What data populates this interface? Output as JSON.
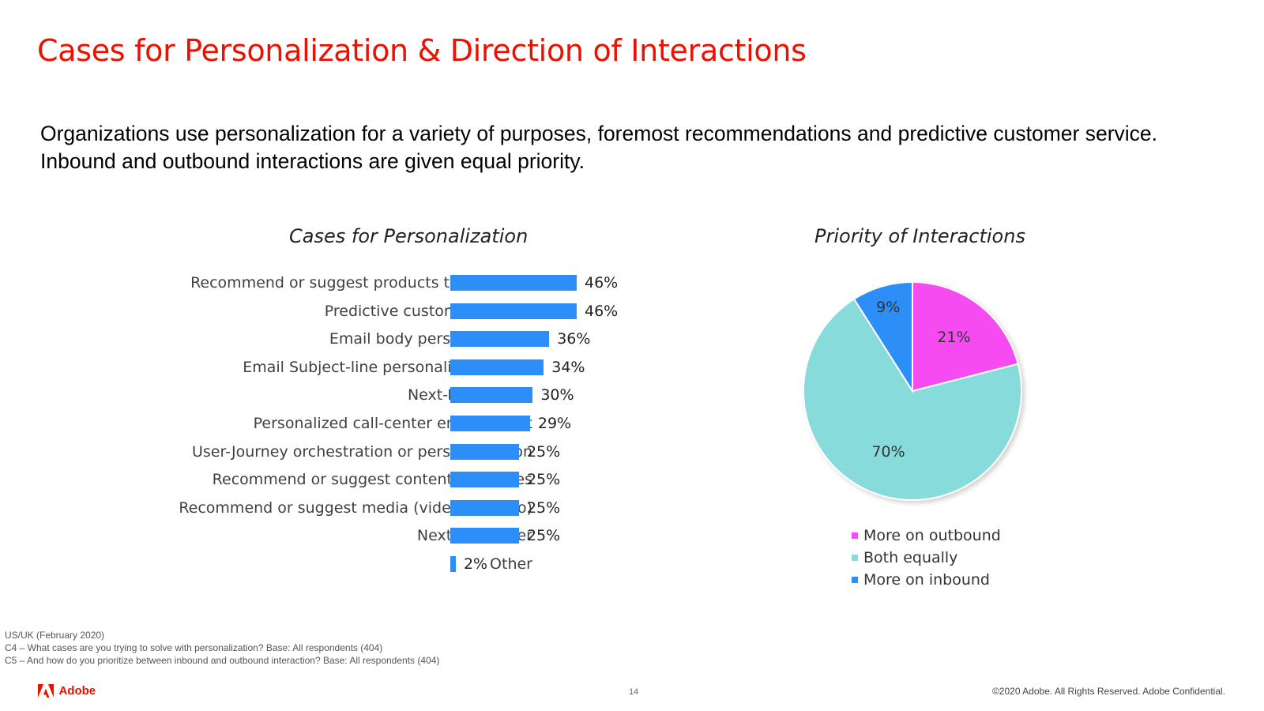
{
  "page": {
    "title": "Cases for Personalization & Direction of Interactions",
    "subtitle_lines": [
      "Organizations use personalization for a variety of purposes, foremost recommendations and predictive customer service.",
      "Inbound and outbound interactions are given equal priority."
    ]
  },
  "chart_data": [
    {
      "type": "bar",
      "orientation": "horizontal",
      "title": "Cases for Personalization",
      "categories": [
        "Recommend or suggest products to purchase",
        "Predictive customer service",
        "Email body personalization",
        "Email Subject-line personalization or…",
        "Next-Best Action",
        "Personalized call-center engagement",
        "User-Journey orchestration or personalization",
        "Recommend or suggest content or articles",
        "Recommend or suggest media (video or audio)",
        "Next-Best Offer",
        "Other"
      ],
      "values": [
        46,
        46,
        36,
        34,
        30,
        29,
        25,
        25,
        25,
        25,
        2
      ],
      "value_labels": [
        "46%",
        "46%",
        "36%",
        "34%",
        "30%",
        "29%",
        "25%",
        "25%",
        "25%",
        "25%",
        "2%"
      ],
      "unit": "%",
      "color": "#2d8ef7",
      "legend": "none"
    },
    {
      "type": "pie",
      "title": "Priority of Interactions",
      "labels": [
        "More on outbound",
        "Both equally",
        "More on inbound"
      ],
      "values": [
        21,
        70,
        9
      ],
      "value_labels": [
        "21%",
        "70%",
        "9%"
      ],
      "colors": [
        "#f74cf2",
        "#88dbdb",
        "#2d8ef7"
      ],
      "legend": "bottom"
    }
  ],
  "footnotes": [
    "US/UK (February 2020)",
    "C4 –  What cases are you trying to solve with personalization? Base: All respondents (404)",
    "C5 – And how do you prioritize between inbound and outbound interaction? Base: All respondents (404)"
  ],
  "footer": {
    "brand": "Adobe",
    "page_number": "14",
    "copyright": "©2020 Adobe. All Rights Reserved. Adobe Confidential."
  }
}
